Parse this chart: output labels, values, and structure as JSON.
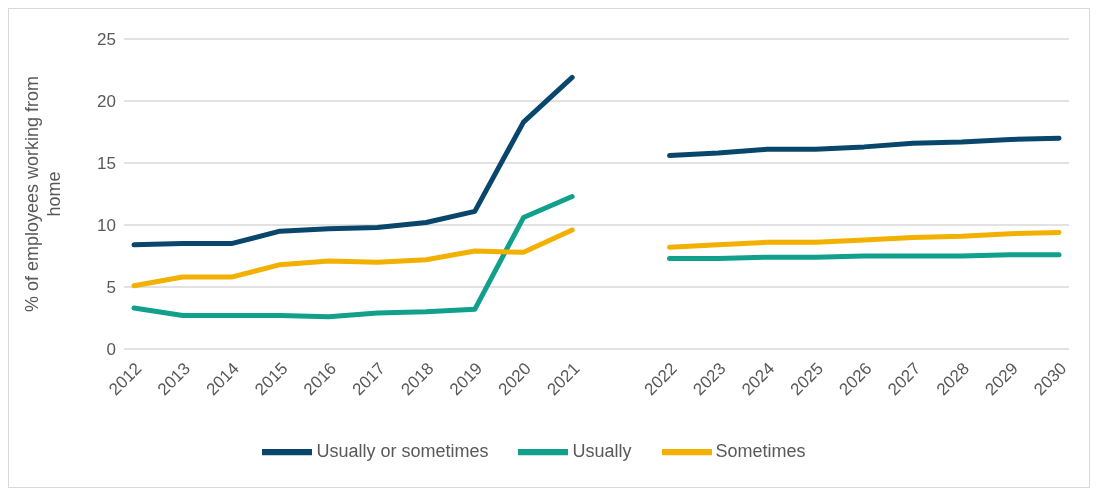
{
  "chart_data": {
    "type": "line",
    "ylabel": "% of employees working from home",
    "categories": [
      "2012",
      "2013",
      "2014",
      "2015",
      "2016",
      "2017",
      "2018",
      "2019",
      "2020",
      "2021",
      null,
      "2022",
      "2023",
      "2024",
      "2025",
      "2026",
      "2027",
      "2028",
      "2029",
      "2030"
    ],
    "series": [
      {
        "name": "Usually or sometimes",
        "color": "#08476b",
        "values": [
          8.4,
          8.5,
          8.5,
          9.5,
          9.7,
          9.8,
          10.2,
          11.1,
          18.3,
          21.9,
          null,
          15.6,
          15.8,
          16.1,
          16.1,
          16.3,
          16.6,
          16.7,
          16.9,
          17.0
        ]
      },
      {
        "name": "Usually",
        "color": "#10a08c",
        "values": [
          3.3,
          2.7,
          2.7,
          2.7,
          2.6,
          2.9,
          3.0,
          3.2,
          10.6,
          12.3,
          null,
          7.3,
          7.3,
          7.4,
          7.4,
          7.5,
          7.5,
          7.5,
          7.6,
          7.6
        ]
      },
      {
        "name": "Sometimes",
        "color": "#f2b000",
        "values": [
          5.1,
          5.8,
          5.8,
          6.8,
          7.1,
          7.0,
          7.2,
          7.9,
          7.8,
          9.6,
          null,
          8.2,
          8.4,
          8.6,
          8.6,
          8.8,
          9.0,
          9.1,
          9.3,
          9.4
        ]
      }
    ],
    "ylim": [
      0,
      25
    ],
    "yticks": [
      0,
      5,
      10,
      15,
      20,
      25
    ],
    "grid": "y",
    "legend": "bottom",
    "marker": "none",
    "line_style": "solid"
  }
}
